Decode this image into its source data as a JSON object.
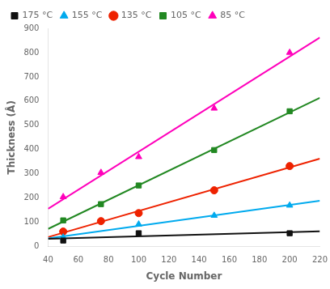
{
  "chart_data": {
    "type": "scatter",
    "x_label": "Cycle Number",
    "y_label": "Thickness (Å)",
    "xlim": [
      40,
      220
    ],
    "ylim": [
      0,
      900
    ],
    "xticks": [
      40,
      60,
      80,
      100,
      120,
      140,
      160,
      180,
      200,
      220
    ],
    "yticks": [
      0,
      100,
      200,
      300,
      400,
      500,
      600,
      700,
      800,
      900
    ],
    "grid": false,
    "legend": "upper left",
    "series": [
      {
        "name": "175 °C",
        "color": "#111111",
        "marker": "square",
        "x": [
          50,
          100,
          200
        ],
        "values": [
          25,
          55,
          55
        ],
        "trend_x": [
          40,
          220
        ],
        "trend_y": [
          31.857143,
          62.714286
        ]
      },
      {
        "name": "155 °C",
        "color": "#00aaee",
        "marker": "triangle",
        "x": [
          50,
          100,
          150,
          200
        ],
        "values": [
          38,
          92,
          128,
          170
        ],
        "trend_x": [
          40,
          220
        ],
        "trend_y": [
          33.56,
          189.08
        ]
      },
      {
        "name": "135 °C",
        "color": "#ee2200",
        "marker": "circle",
        "x": [
          50,
          75,
          100,
          150,
          200
        ],
        "values": [
          62,
          105,
          138,
          232,
          332
        ],
        "trend_x": [
          40,
          220
        ],
        "trend_y": [
          39.110345,
          362.365517
        ]
      },
      {
        "name": "105 °C",
        "color": "#228822",
        "marker": "square",
        "x": [
          50,
          75,
          100,
          150,
          200
        ],
        "values": [
          108,
          175,
          252,
          398,
          558
        ],
        "trend_x": [
          40,
          220
        ],
        "trend_y": [
          72.889655,
          613.634483
        ]
      },
      {
        "name": "85 °C",
        "color": "#ff00bb",
        "marker": "triangle",
        "x": [
          50,
          75,
          100,
          150,
          200
        ],
        "values": [
          205,
          305,
          370,
          570,
          800
        ],
        "trend_x": [
          40,
          220
        ],
        "trend_y": [
          155.818966,
          861.853448
        ]
      }
    ]
  }
}
